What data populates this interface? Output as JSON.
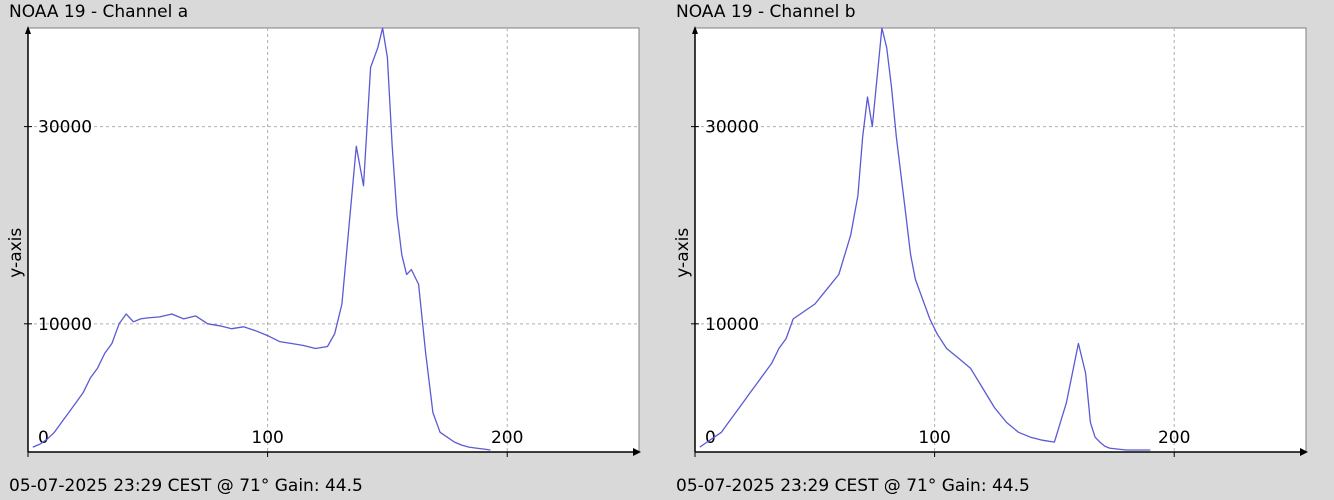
{
  "colors": {
    "background": "#d9d9d9",
    "plot_area": "#ffffff",
    "line": "#5a5ad4",
    "grid": "#b0b0b0",
    "axis": "#000000"
  },
  "chart_data": [
    {
      "type": "line",
      "title": "NOAA 19 - Channel a",
      "footer": "05-07-2025 23:29 CEST @ 71° Gain: 44.5",
      "xlabel": "",
      "ylabel": "y-axis",
      "xlim": [
        0,
        255
      ],
      "ylim": [
        -3000,
        40000
      ],
      "x_ticks": [
        0,
        100,
        200
      ],
      "y_ticks": [
        10000,
        30000
      ],
      "grid": true,
      "series": [
        {
          "x": [
            2,
            5,
            8,
            11,
            14,
            17,
            20,
            23,
            26,
            29,
            32,
            35,
            38,
            41,
            44,
            47,
            50,
            55,
            60,
            65,
            70,
            75,
            80,
            85,
            90,
            95,
            100,
            105,
            110,
            115,
            120,
            125,
            128,
            131,
            134,
            137,
            140,
            143,
            146,
            148,
            150,
            152,
            154,
            156,
            158,
            160,
            163,
            166,
            169,
            172,
            175,
            178,
            181,
            184,
            187,
            190,
            193
          ],
          "values": [
            -2500,
            -2200,
            -1700,
            -1000,
            0,
            1000,
            2000,
            3000,
            4500,
            5500,
            7000,
            8000,
            10000,
            11000,
            10200,
            10500,
            10600,
            10700,
            11000,
            10500,
            10800,
            10000,
            9800,
            9500,
            9700,
            9300,
            8800,
            8200,
            8000,
            7800,
            7500,
            7700,
            9000,
            12000,
            20000,
            28000,
            24000,
            36000,
            38000,
            40000,
            37000,
            28000,
            21000,
            17000,
            15000,
            15500,
            14000,
            7000,
            1000,
            -1000,
            -1500,
            -2000,
            -2300,
            -2500,
            -2600,
            -2700,
            -2800
          ]
        }
      ]
    },
    {
      "type": "line",
      "title": "NOAA 19 - Channel b",
      "footer": "05-07-2025 23:29 CEST @ 71° Gain: 44.5",
      "xlabel": "",
      "ylabel": "y-axis",
      "xlim": [
        0,
        255
      ],
      "ylim": [
        -3000,
        40000
      ],
      "x_ticks": [
        0,
        100,
        200
      ],
      "y_ticks": [
        10000,
        30000
      ],
      "grid": true,
      "series": [
        {
          "x": [
            2,
            5,
            8,
            11,
            14,
            17,
            20,
            23,
            26,
            29,
            32,
            35,
            38,
            41,
            44,
            47,
            50,
            55,
            60,
            65,
            68,
            70,
            72,
            74,
            76,
            78,
            80,
            82,
            84,
            86,
            88,
            90,
            92,
            95,
            98,
            101,
            105,
            110,
            115,
            120,
            125,
            130,
            135,
            140,
            145,
            150,
            155,
            160,
            163,
            165,
            167,
            169,
            171,
            173,
            176,
            180,
            185,
            190
          ],
          "values": [
            -2500,
            -2000,
            -1500,
            -1000,
            0,
            1000,
            2000,
            3000,
            4000,
            5000,
            6000,
            7500,
            8500,
            10500,
            11000,
            11500,
            12000,
            13500,
            15000,
            19000,
            23000,
            29000,
            33000,
            30000,
            35000,
            40000,
            38000,
            34000,
            29000,
            25000,
            21000,
            17000,
            14500,
            12500,
            10500,
            9000,
            7500,
            6500,
            5500,
            3500,
            1500,
            0,
            -1000,
            -1500,
            -1800,
            -2000,
            2000,
            8000,
            5000,
            0,
            -1500,
            -2000,
            -2400,
            -2600,
            -2700,
            -2800,
            -2800,
            -2800
          ]
        }
      ]
    }
  ]
}
